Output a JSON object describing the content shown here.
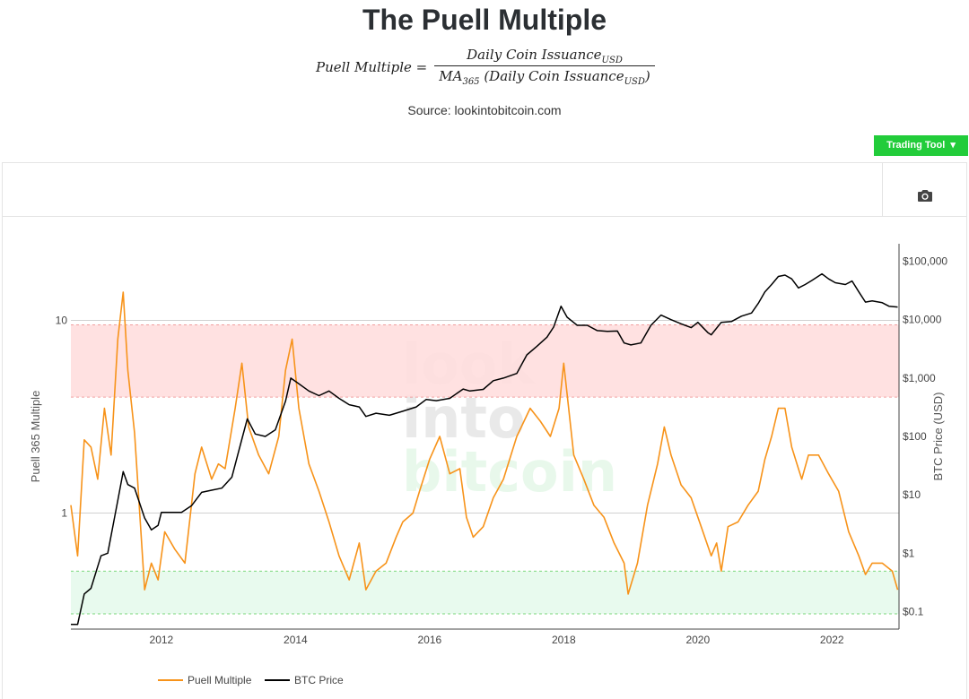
{
  "header": {
    "title": "The Puell Multiple",
    "formula": {
      "lhs": "Puell Multiple =",
      "numerator": "Daily Coin Issuance",
      "numerator_sub": "USD",
      "denominator_prefix": "MA",
      "denominator_prefix_sub": "365",
      "denominator": " (Daily Coin Issuance",
      "denominator_sub": "USD",
      "denominator_suffix": ")"
    },
    "source": "Source: lookintobitcoin.com"
  },
  "toolbar": {
    "trading_tool_label": "Trading Tool",
    "camera_icon": "camera-icon"
  },
  "watermark": [
    "look",
    "into",
    "bitcoin"
  ],
  "colors": {
    "puell": "#f7931a",
    "btc": "#000000",
    "top_band": "#ffdede",
    "bottom_band": "#e6f9ec",
    "button": "#22cc3a"
  },
  "chart_data": {
    "type": "line",
    "title": "The Puell Multiple",
    "xlabel": "",
    "y_left_label": "Puell 365 Multiple",
    "y_right_label": "BTC Price (USD)",
    "x_ticks": [
      "2012",
      "2014",
      "2016",
      "2018",
      "2020",
      "2022"
    ],
    "y_left_ticks": [
      "10",
      "1"
    ],
    "y_left_scale": "log",
    "y_left_range": [
      0.25,
      25
    ],
    "y_right_ticks": [
      "$100,000",
      "$10,000",
      "$1,000",
      "$100",
      "$10",
      "$1",
      "$0.1"
    ],
    "y_right_scale": "log",
    "y_right_range": [
      0.05,
      200000
    ],
    "x_range": [
      2010.65,
      2023.0
    ],
    "bands": [
      {
        "name": "overvalued",
        "from": 4.0,
        "to": 9.5
      },
      {
        "name": "undervalued",
        "from": 0.3,
        "to": 0.5
      }
    ],
    "series": [
      {
        "name": "Puell Multiple",
        "color": "#f7931a",
        "x": [
          2010.65,
          2010.75,
          2010.85,
          2010.95,
          2011.05,
          2011.15,
          2011.25,
          2011.35,
          2011.43,
          2011.5,
          2011.6,
          2011.75,
          2011.85,
          2011.95,
          2012.05,
          2012.2,
          2012.35,
          2012.5,
          2012.6,
          2012.75,
          2012.85,
          2012.95,
          2013.1,
          2013.2,
          2013.3,
          2013.45,
          2013.6,
          2013.75,
          2013.85,
          2013.95,
          2014.05,
          2014.2,
          2014.35,
          2014.5,
          2014.65,
          2014.8,
          2014.95,
          2015.05,
          2015.2,
          2015.35,
          2015.5,
          2015.6,
          2015.75,
          2015.85,
          2016.0,
          2016.15,
          2016.3,
          2016.45,
          2016.55,
          2016.65,
          2016.8,
          2016.95,
          2017.1,
          2017.3,
          2017.5,
          2017.65,
          2017.8,
          2017.93,
          2018.0,
          2018.15,
          2018.3,
          2018.45,
          2018.6,
          2018.75,
          2018.9,
          2018.96,
          2019.1,
          2019.25,
          2019.4,
          2019.5,
          2019.6,
          2019.75,
          2019.9,
          2020.05,
          2020.2,
          2020.28,
          2020.35,
          2020.45,
          2020.6,
          2020.75,
          2020.9,
          2021.0,
          2021.1,
          2021.2,
          2021.3,
          2021.4,
          2021.5,
          2021.55,
          2021.65,
          2021.8,
          2021.95,
          2022.1,
          2022.25,
          2022.4,
          2022.5,
          2022.6,
          2022.75,
          2022.9,
          2022.98
        ],
        "values": [
          1.1,
          0.6,
          2.4,
          2.2,
          1.5,
          3.5,
          2.0,
          8.0,
          14.0,
          5.5,
          2.6,
          0.4,
          0.55,
          0.45,
          0.8,
          0.65,
          0.55,
          1.6,
          2.2,
          1.5,
          1.8,
          1.7,
          3.5,
          6.0,
          2.8,
          2.0,
          1.6,
          2.5,
          5.5,
          8.0,
          3.5,
          1.8,
          1.3,
          0.9,
          0.6,
          0.45,
          0.7,
          0.4,
          0.5,
          0.55,
          0.75,
          0.9,
          1.0,
          1.3,
          1.9,
          2.5,
          1.6,
          1.7,
          0.95,
          0.75,
          0.85,
          1.2,
          1.5,
          2.5,
          3.5,
          3.0,
          2.5,
          3.5,
          6.0,
          2.0,
          1.5,
          1.1,
          0.95,
          0.7,
          0.55,
          0.38,
          0.55,
          1.1,
          1.8,
          2.8,
          2.0,
          1.4,
          1.2,
          0.85,
          0.6,
          0.7,
          0.5,
          0.85,
          0.9,
          1.1,
          1.3,
          1.9,
          2.5,
          3.5,
          3.5,
          2.2,
          1.7,
          1.5,
          2.0,
          2.0,
          1.6,
          1.3,
          0.8,
          0.6,
          0.48,
          0.55,
          0.55,
          0.5,
          0.4
        ]
      },
      {
        "name": "BTC Price",
        "color": "#000000",
        "x": [
          2010.65,
          2010.75,
          2010.85,
          2010.95,
          2011.1,
          2011.2,
          2011.35,
          2011.43,
          2011.5,
          2011.6,
          2011.75,
          2011.85,
          2011.95,
          2012.0,
          2012.15,
          2012.3,
          2012.45,
          2012.6,
          2012.75,
          2012.9,
          2013.05,
          2013.2,
          2013.28,
          2013.4,
          2013.55,
          2013.7,
          2013.85,
          2013.93,
          2014.05,
          2014.2,
          2014.35,
          2014.5,
          2014.65,
          2014.8,
          2014.95,
          2015.05,
          2015.2,
          2015.4,
          2015.6,
          2015.8,
          2015.95,
          2016.1,
          2016.3,
          2016.5,
          2016.6,
          2016.8,
          2016.95,
          2017.1,
          2017.3,
          2017.45,
          2017.6,
          2017.75,
          2017.85,
          2017.96,
          2018.05,
          2018.2,
          2018.35,
          2018.5,
          2018.65,
          2018.8,
          2018.9,
          2019.0,
          2019.15,
          2019.3,
          2019.45,
          2019.6,
          2019.75,
          2019.9,
          2020.0,
          2020.15,
          2020.2,
          2020.35,
          2020.5,
          2020.65,
          2020.8,
          2020.9,
          2021.0,
          2021.1,
          2021.2,
          2021.3,
          2021.4,
          2021.5,
          2021.6,
          2021.7,
          2021.85,
          2021.95,
          2022.05,
          2022.2,
          2022.3,
          2022.4,
          2022.5,
          2022.6,
          2022.75,
          2022.85,
          2022.98
        ],
        "values": [
          0.06,
          0.06,
          0.2,
          0.25,
          0.9,
          1.0,
          8.0,
          25.0,
          15.0,
          13.0,
          4.0,
          2.5,
          3.0,
          5.0,
          5.0,
          5.0,
          6.5,
          11.0,
          12.0,
          13.0,
          20.0,
          90.0,
          200.0,
          110.0,
          100.0,
          130.0,
          400.0,
          1000.0,
          800.0,
          600.0,
          500.0,
          600.0,
          450.0,
          350.0,
          320.0,
          220.0,
          250.0,
          230.0,
          270.0,
          320.0,
          430.0,
          410.0,
          450.0,
          650.0,
          600.0,
          640.0,
          900.0,
          1000.0,
          1200.0,
          2500.0,
          3500.0,
          5000.0,
          7500.0,
          17000.0,
          11000.0,
          8000.0,
          8000.0,
          6500.0,
          6300.0,
          6400.0,
          4000.0,
          3700.0,
          4000.0,
          8000.0,
          12000.0,
          10000.0,
          8500.0,
          7300.0,
          9000.0,
          6000.0,
          5500.0,
          9000.0,
          9300.0,
          11500.0,
          13000.0,
          19000.0,
          30000.0,
          40000.0,
          55000.0,
          58000.0,
          50000.0,
          35000.0,
          40000.0,
          47000.0,
          61000.0,
          50000.0,
          43000.0,
          40000.0,
          46000.0,
          30000.0,
          20000.0,
          21000.0,
          19500.0,
          17000.0,
          16500.0
        ]
      }
    ],
    "legend": "bottom-left",
    "grid": false
  }
}
